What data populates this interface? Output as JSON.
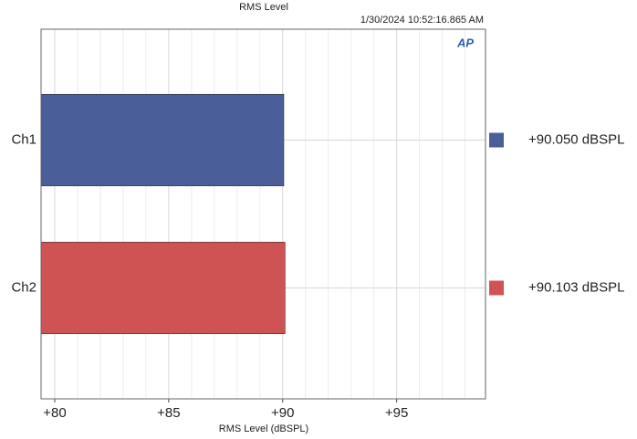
{
  "chart_data": {
    "type": "hbar",
    "title": "RMS Level",
    "subtitle": "1/30/2024 10:52:16.865 AM",
    "logo": "AP",
    "xlabel": "RMS Level (dBSPL)",
    "categories": [
      "Ch1",
      "Ch2"
    ],
    "values": [
      90.05,
      90.103
    ],
    "value_labels": [
      "+90.050 dBSPL",
      "+90.103 dBSPL"
    ],
    "colors": [
      "#4a5f9a",
      "#d05353"
    ],
    "xlim": [
      79.4,
      98.9
    ],
    "xticks": [
      {
        "value": 80,
        "label": "+80"
      },
      {
        "value": 85,
        "label": "+85"
      },
      {
        "value": 90,
        "label": "+90"
      },
      {
        "value": 95,
        "label": "+95"
      }
    ],
    "minor_xticks": [
      81,
      82,
      83,
      84,
      86,
      87,
      88,
      89,
      91,
      92,
      93,
      94,
      96,
      97,
      98
    ],
    "grid": true
  }
}
